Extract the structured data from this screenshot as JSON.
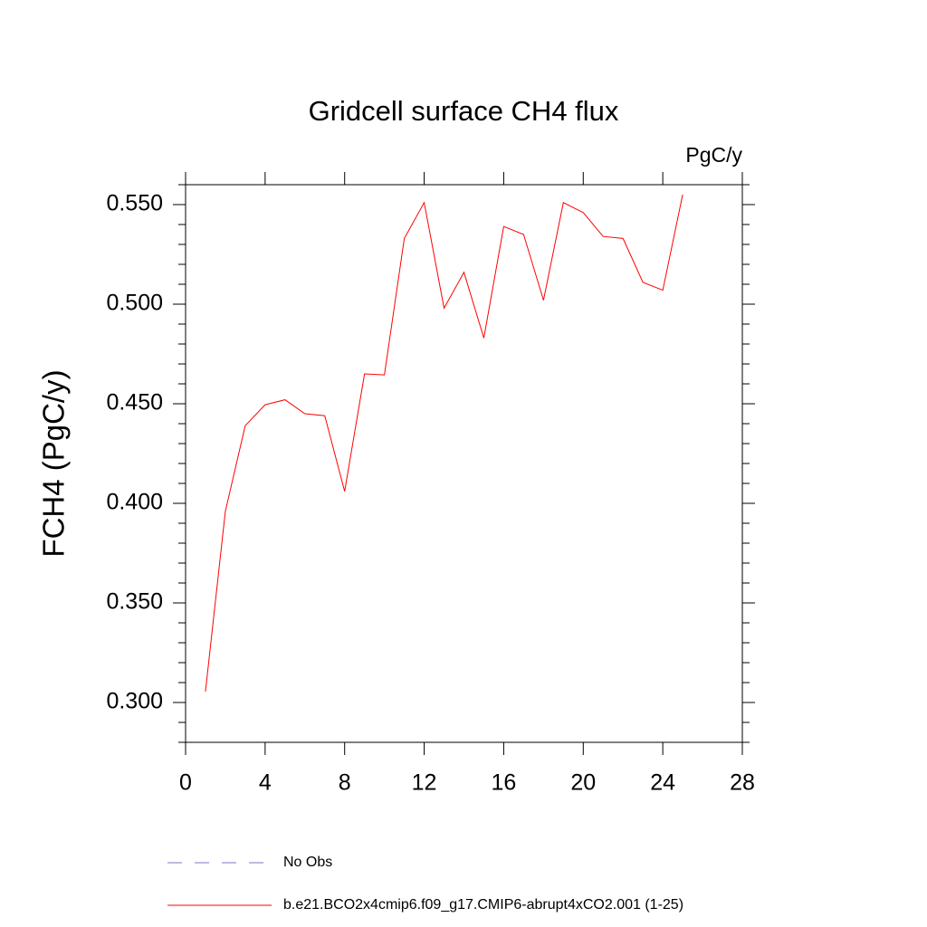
{
  "chart_data": {
    "type": "line",
    "title": "Gridcell surface CH4 flux",
    "units": "PgC/y",
    "y_label": "FCH4  (PgC/y)",
    "x": [
      1,
      2,
      3,
      4,
      5,
      6,
      7,
      8,
      9,
      10,
      11,
      12,
      13,
      14,
      15,
      16,
      17,
      18,
      19,
      20,
      21,
      22,
      23,
      24,
      25
    ],
    "series": [
      {
        "name": "b.e21.BCO2x4cmip6.f09_g17.CMIP6-abrupt4xCO2.001 (1-25)",
        "color": "#ff0000",
        "values": [
          0.3055,
          0.396,
          0.439,
          0.4495,
          0.452,
          0.445,
          0.444,
          0.406,
          0.465,
          0.4645,
          0.533,
          0.551,
          0.498,
          0.516,
          0.483,
          0.539,
          0.535,
          0.502,
          0.551,
          0.546,
          0.534,
          0.533,
          0.511,
          0.507,
          0.555
        ]
      }
    ],
    "extra_legend": {
      "name": "No Obs",
      "color": "#7777cc",
      "dashed": true
    },
    "xlim": [
      0,
      28
    ],
    "xticks": [
      0,
      4,
      8,
      12,
      16,
      20,
      24,
      28
    ],
    "ylim": [
      0.28,
      0.56
    ],
    "yticks": [
      {
        "value": 0.3,
        "label": "0.300"
      },
      {
        "value": 0.35,
        "label": "0.350"
      },
      {
        "value": 0.4,
        "label": "0.400"
      },
      {
        "value": 0.45,
        "label": "0.450"
      },
      {
        "value": 0.5,
        "label": "0.500"
      },
      {
        "value": 0.55,
        "label": "0.550"
      }
    ],
    "yminorticks": [
      0.28,
      0.29,
      0.31,
      0.32,
      0.33,
      0.34,
      0.36,
      0.37,
      0.38,
      0.39,
      0.41,
      0.42,
      0.43,
      0.44,
      0.46,
      0.47,
      0.48,
      0.49,
      0.51,
      0.52,
      0.53,
      0.54,
      0.56
    ]
  }
}
